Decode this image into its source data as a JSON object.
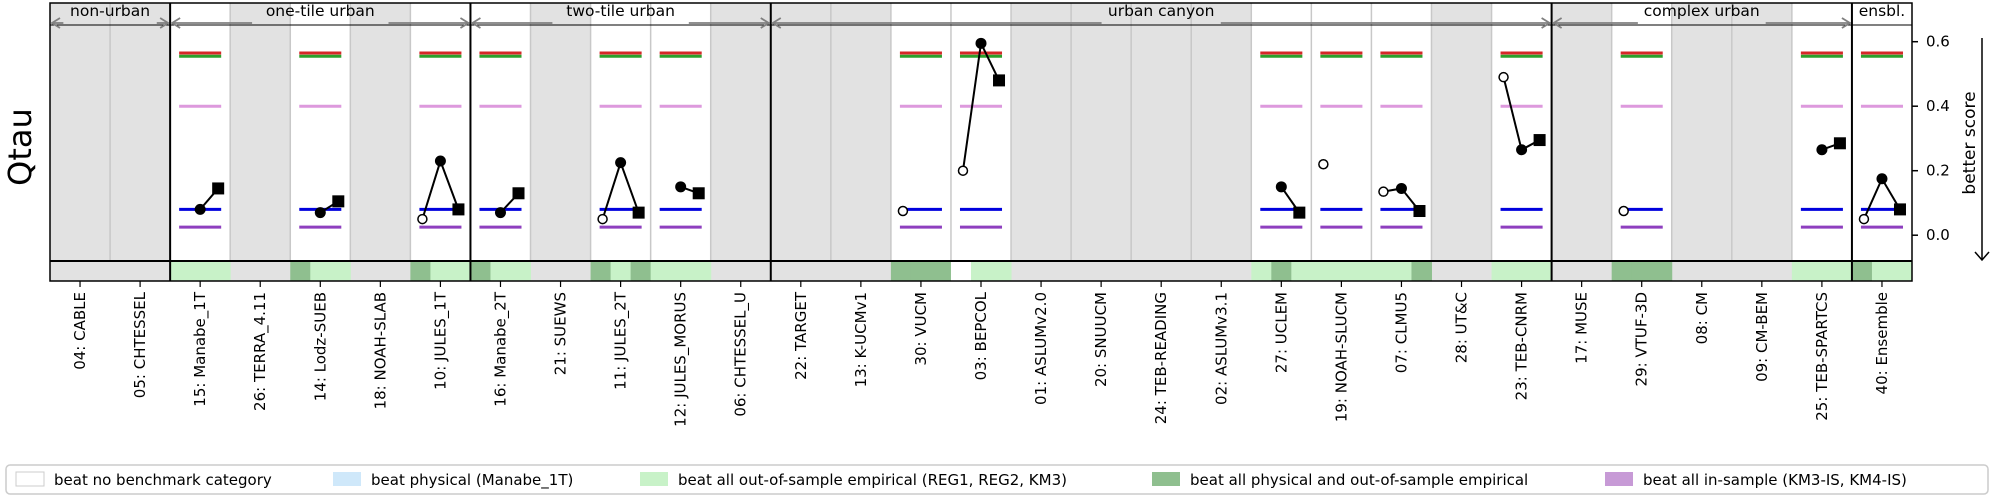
{
  "chart_data": {
    "type": "scatter",
    "ylabel": "Qtau",
    "right_label": "better score",
    "ylim": [
      -0.08,
      0.72
    ],
    "yticks": [
      "0.0",
      "0.2",
      "0.4",
      "0.6"
    ],
    "groups": [
      {
        "label": "non-urban",
        "start": 0,
        "end": 2
      },
      {
        "label": "one-tile urban",
        "start": 2,
        "end": 7
      },
      {
        "label": "two-tile urban",
        "start": 7,
        "end": 12
      },
      {
        "label": "urban canyon",
        "start": 12,
        "end": 25
      },
      {
        "label": "complex urban",
        "start": 25,
        "end": 30
      },
      {
        "label": "ensbl.",
        "start": 30,
        "end": 31
      }
    ],
    "models": [
      {
        "label": "04: CABLE",
        "evaluated": false
      },
      {
        "label": "05: CHTESSEL",
        "evaluated": false
      },
      {
        "label": "15: Manabe_1T",
        "evaluated": true,
        "open": null,
        "filled": 0.08,
        "square": 0.145,
        "strip": [
          "lightgreen",
          "lightgreen",
          "lightgreen"
        ]
      },
      {
        "label": "26: TERRA_4.11",
        "evaluated": false
      },
      {
        "label": "14: Lodz-SUEB",
        "evaluated": true,
        "open": null,
        "filled": 0.07,
        "square": 0.105,
        "strip": [
          "darkgreen",
          "lightgreen",
          "lightgreen"
        ]
      },
      {
        "label": "18: NOAH-SLAB",
        "evaluated": false
      },
      {
        "label": "10: JULES_1T",
        "evaluated": true,
        "open": 0.05,
        "filled": 0.23,
        "square": 0.08,
        "strip": [
          "darkgreen",
          "lightgreen",
          "lightgreen"
        ]
      },
      {
        "label": "16: Manabe_2T",
        "evaluated": true,
        "open": null,
        "filled": 0.07,
        "square": 0.13,
        "strip": [
          "darkgreen",
          "lightgreen",
          "lightgreen"
        ]
      },
      {
        "label": "21: SUEWS",
        "evaluated": false
      },
      {
        "label": "11: JULES_2T",
        "evaluated": true,
        "open": 0.05,
        "filled": 0.225,
        "square": 0.07,
        "strip": [
          "darkgreen",
          "lightgreen",
          "darkgreen"
        ]
      },
      {
        "label": "12: JULES_MORUS",
        "evaluated": true,
        "open": null,
        "filled": 0.15,
        "square": 0.13,
        "strip": [
          "lightgreen",
          "lightgreen",
          "lightgreen"
        ]
      },
      {
        "label": "06: CHTESSEL_U",
        "evaluated": false
      },
      {
        "label": "22: TARGET",
        "evaluated": false
      },
      {
        "label": "13: K-UCMv1",
        "evaluated": false
      },
      {
        "label": "30: VUCM",
        "evaluated": true,
        "open": 0.075,
        "filled": null,
        "square": null,
        "strip": [
          "darkgreen",
          "darkgreen",
          "darkgreen"
        ]
      },
      {
        "label": "03: BEPCOL",
        "evaluated": true,
        "open": 0.2,
        "filled": 0.595,
        "square": 0.48,
        "strip": [
          "white",
          "lightgreen",
          "lightgreen"
        ]
      },
      {
        "label": "01: ASLUMv2.0",
        "evaluated": false
      },
      {
        "label": "20: SNUUCM",
        "evaluated": false
      },
      {
        "label": "24: TEB-READING",
        "evaluated": false
      },
      {
        "label": "02: ASLUMv3.1",
        "evaluated": false
      },
      {
        "label": "27: UCLEM",
        "evaluated": true,
        "open": null,
        "filled": 0.15,
        "square": 0.07,
        "strip": [
          "lightgreen",
          "darkgreen",
          "lightgreen"
        ]
      },
      {
        "label": "19: NOAH-SLUCM",
        "evaluated": true,
        "open": 0.22,
        "filled": null,
        "square": null,
        "strip": [
          "lightgreen",
          "lightgreen",
          "lightgreen"
        ]
      },
      {
        "label": "07: CLMU5",
        "evaluated": true,
        "open": 0.135,
        "filled": 0.145,
        "square": 0.075,
        "strip": [
          "lightgreen",
          "lightgreen",
          "darkgreen"
        ]
      },
      {
        "label": "28: UT&C",
        "evaluated": false
      },
      {
        "label": "23: TEB-CNRM",
        "evaluated": true,
        "open": 0.49,
        "filled": 0.265,
        "square": 0.295,
        "strip": [
          "lightgreen",
          "lightgreen",
          "lightgreen"
        ]
      },
      {
        "label": "17: MUSE",
        "evaluated": false
      },
      {
        "label": "29: VTUF-3D",
        "evaluated": true,
        "open": 0.075,
        "filled": null,
        "square": null,
        "strip": [
          "darkgreen",
          "darkgreen",
          "darkgreen"
        ]
      },
      {
        "label": "08: CM",
        "evaluated": false
      },
      {
        "label": "09: CM-BEM",
        "evaluated": false
      },
      {
        "label": "25: TEB-SPARTCS",
        "evaluated": true,
        "open": null,
        "filled": 0.265,
        "square": 0.285,
        "strip": [
          "lightgreen",
          "lightgreen",
          "lightgreen"
        ]
      },
      {
        "label": "40: Ensemble",
        "evaluated": true,
        "open": 0.05,
        "filled": 0.175,
        "square": 0.08,
        "strip": [
          "darkgreen",
          "lightgreen",
          "lightgreen"
        ]
      }
    ],
    "benchmark_lines": [
      {
        "value": 0.565,
        "color": "#d62728"
      },
      {
        "value": 0.555,
        "color": "#2ca02c"
      },
      {
        "value": 0.4,
        "color": "#dd99dd"
      },
      {
        "value": 0.08,
        "color": "#0000dd"
      },
      {
        "value": 0.025,
        "color": "#8e3fbf"
      }
    ],
    "legend": [
      {
        "label": "beat no benchmark category",
        "color": "#ffffff"
      },
      {
        "label": "beat physical (Manabe_1T)",
        "color": "#cfe8fa"
      },
      {
        "label": "beat all out-of-sample empirical (REG1, REG2, KM3)",
        "color": "#c8f2c8"
      },
      {
        "label": "beat all physical and out-of-sample empirical",
        "color": "#8fbf8f"
      },
      {
        "label": "beat all in-sample (KM3-IS, KM4-IS)",
        "color": "#c79ad6"
      }
    ],
    "colors": {
      "unevaluated_bg": "#e2e2e2",
      "evaluated_bg": "#ffffff",
      "lightgreen": "#c8f2c8",
      "darkgreen": "#8fbf8f",
      "white": "#ffffff"
    }
  }
}
